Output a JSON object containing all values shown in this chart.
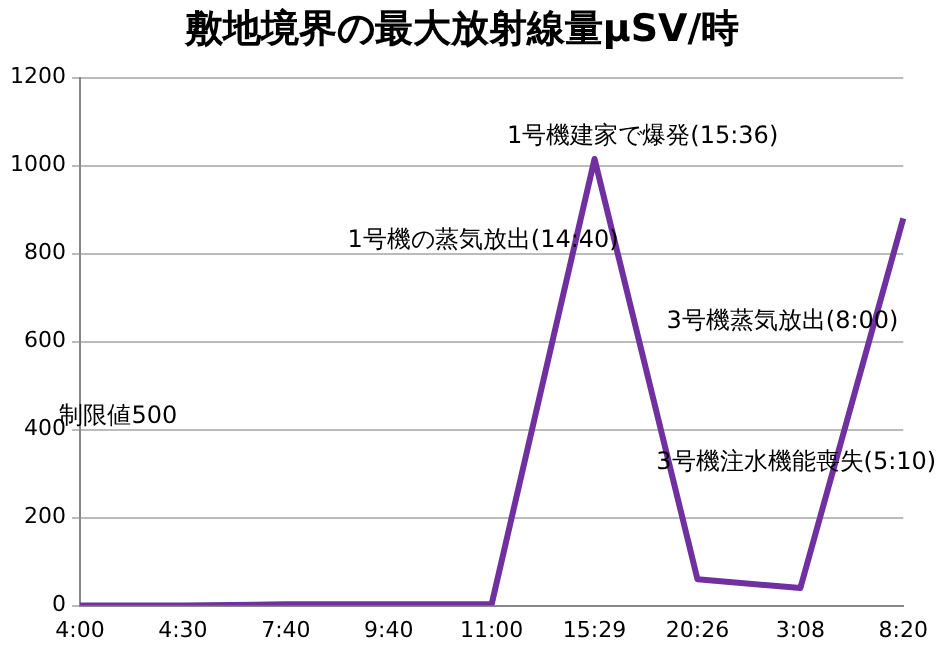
{
  "chart_data": {
    "type": "line",
    "title": "敷地境界の最大放射線量μSV/時",
    "categories": [
      "4:00",
      "4:30",
      "7:40",
      "9:40",
      "11:00",
      "15:29",
      "20:26",
      "3:08",
      "8:20"
    ],
    "series": [
      {
        "color": "#7030a0",
        "values": [
          0,
          0,
          3,
          3,
          3,
          1015,
          60,
          40,
          880
        ]
      }
    ],
    "ylim": [
      0,
      1200
    ],
    "yticks": [
      0,
      200,
      400,
      600,
      800,
      1000,
      1200
    ],
    "grid": "y",
    "legend": false,
    "marker": "none",
    "line_style": "solid",
    "annotations": [
      "1号機建家で爆発(15:36)",
      "1号機の蒸気放出(14:40)",
      "3号機蒸気放出(8:00)",
      "3号機注水機能喪失(5:10)",
      "制限値500"
    ]
  }
}
